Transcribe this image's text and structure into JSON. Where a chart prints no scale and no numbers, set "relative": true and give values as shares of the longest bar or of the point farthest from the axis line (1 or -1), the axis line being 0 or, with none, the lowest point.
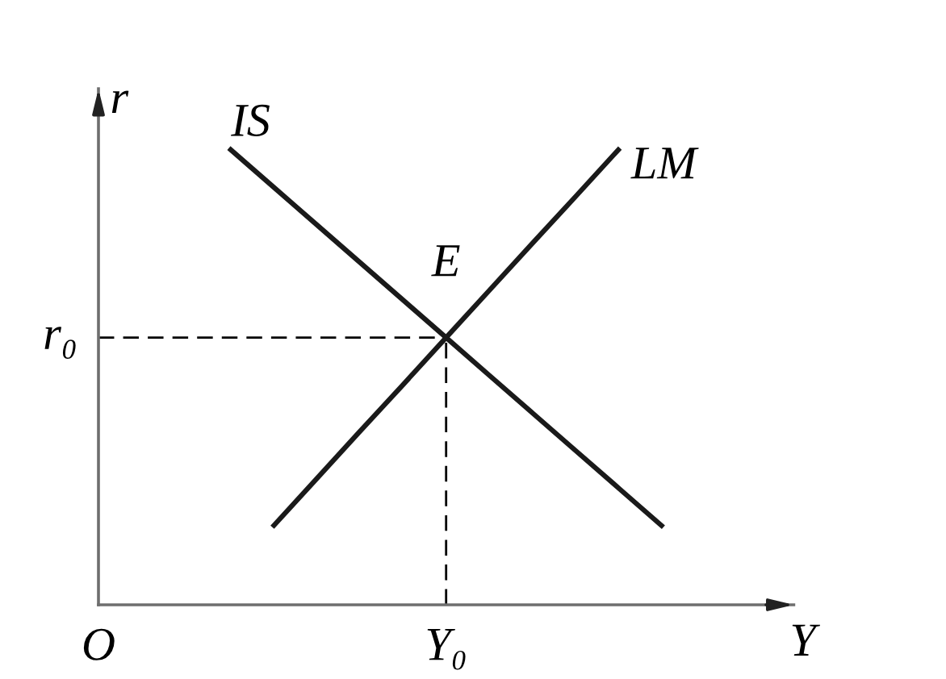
{
  "chart_data": {
    "type": "line",
    "relative": true,
    "xlabel": "Y",
    "ylabel": "r",
    "categories": [
      "O",
      null,
      null,
      null,
      null,
      null,
      null,
      null,
      "Y₀",
      null,
      null,
      null,
      null,
      null
    ],
    "series": [
      {
        "name": "IS",
        "color": "#1a1a1a",
        "values": [
          null,
          null,
          null,
          1,
          0.917,
          0.834,
          0.751,
          0.668,
          0.585,
          0.502,
          0.419,
          0.336,
          0.253,
          0.17
        ]
      },
      {
        "name": "LM",
        "color": "#1a1a1a",
        "values": [
          null,
          null,
          null,
          null,
          0.17,
          0.274,
          0.378,
          0.481,
          0.585,
          0.689,
          0.793,
          0.896,
          1,
          null
        ]
      }
    ],
    "ref_lines": [
      {
        "axis": "y",
        "value": 0.585,
        "label": "r₀",
        "line_style": "dashed",
        "color": "#000000"
      },
      {
        "axis": "x",
        "value": "Y₀",
        "line_style": "dashed",
        "color": "#000000"
      }
    ],
    "annotations": [
      {
        "text": "E",
        "x": "Y₀",
        "y": 0.585
      }
    ],
    "tick_labels": "x",
    "line_style": "solid",
    "marker": "none"
  }
}
